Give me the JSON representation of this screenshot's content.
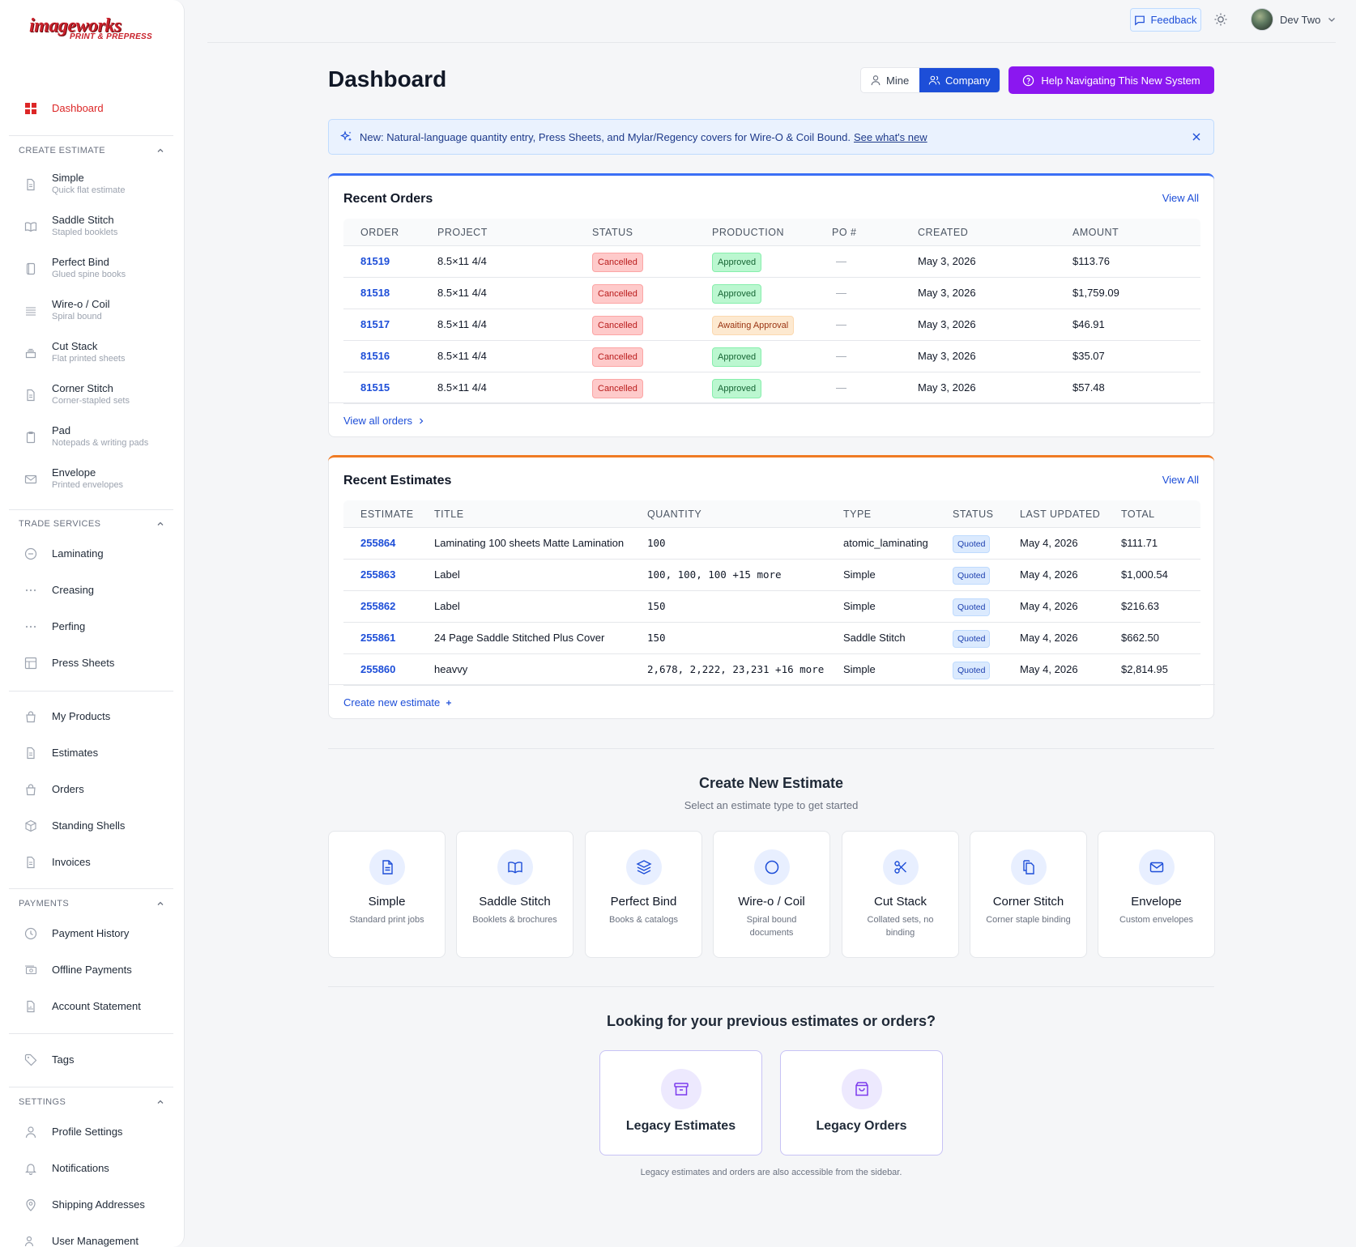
{
  "brand": {
    "line1": "imageworks",
    "line2": "PRINT & PREPRESS"
  },
  "sidebar": {
    "dashboard": "Dashboard",
    "create_estimate": {
      "label": "CREATE ESTIMATE",
      "items": [
        {
          "title": "Simple",
          "sub": "Quick flat estimate"
        },
        {
          "title": "Saddle Stitch",
          "sub": "Stapled booklets"
        },
        {
          "title": "Perfect Bind",
          "sub": "Glued spine books"
        },
        {
          "title": "Wire-o / Coil",
          "sub": "Spiral bound"
        },
        {
          "title": "Cut Stack",
          "sub": "Flat printed sheets"
        },
        {
          "title": "Corner Stitch",
          "sub": "Corner-stapled sets"
        },
        {
          "title": "Pad",
          "sub": "Notepads & writing pads"
        },
        {
          "title": "Envelope",
          "sub": "Printed envelopes"
        }
      ]
    },
    "trade_services": {
      "label": "TRADE SERVICES",
      "items": [
        "Laminating",
        "Creasing",
        "Perfing",
        "Press Sheets"
      ]
    },
    "main": [
      "My Products",
      "Estimates",
      "Orders",
      "Standing Shells",
      "Invoices"
    ],
    "payments": {
      "label": "PAYMENTS",
      "items": [
        "Payment History",
        "Offline Payments",
        "Account Statement"
      ]
    },
    "tags": "Tags",
    "settings": {
      "label": "SETTINGS",
      "items": [
        "Profile Settings",
        "Notifications",
        "Shipping Addresses",
        "User Management"
      ]
    }
  },
  "topbar": {
    "feedback": "Feedback",
    "user_name": "Dev Two"
  },
  "header": {
    "title": "Dashboard",
    "mine": "Mine",
    "company": "Company",
    "help": "Help Navigating This New System"
  },
  "banner": {
    "text": "New: Natural-language quantity entry, Press Sheets, and Mylar/Regency covers for Wire-O & Coil Bound.",
    "link": "See what's new"
  },
  "orders": {
    "title": "Recent Orders",
    "view_all": "View All",
    "columns": [
      "ORDER",
      "PROJECT",
      "STATUS",
      "PRODUCTION",
      "PO #",
      "CREATED",
      "AMOUNT"
    ],
    "rows": [
      {
        "order": "81519",
        "project": "8.5×11 4/4",
        "status": "Cancelled",
        "production": "Approved",
        "po": "—",
        "created": "May 3, 2026",
        "amount": "$113.76"
      },
      {
        "order": "81518",
        "project": "8.5×11 4/4",
        "status": "Cancelled",
        "production": "Approved",
        "po": "—",
        "created": "May 3, 2026",
        "amount": "$1,759.09"
      },
      {
        "order": "81517",
        "project": "8.5×11 4/4",
        "status": "Cancelled",
        "production": "Awaiting Approval",
        "po": "—",
        "created": "May 3, 2026",
        "amount": "$46.91"
      },
      {
        "order": "81516",
        "project": "8.5×11 4/4",
        "status": "Cancelled",
        "production": "Approved",
        "po": "—",
        "created": "May 3, 2026",
        "amount": "$35.07"
      },
      {
        "order": "81515",
        "project": "8.5×11 4/4",
        "status": "Cancelled",
        "production": "Approved",
        "po": "—",
        "created": "May 3, 2026",
        "amount": "$57.48"
      }
    ],
    "footer_link": "View all orders"
  },
  "estimates": {
    "title": "Recent Estimates",
    "view_all": "View All",
    "columns": [
      "ESTIMATE",
      "TITLE",
      "QUANTITY",
      "TYPE",
      "STATUS",
      "LAST UPDATED",
      "TOTAL"
    ],
    "rows": [
      {
        "id": "255864",
        "title": "Laminating 100 sheets Matte Lamination",
        "quantity": "100",
        "type": "atomic_laminating",
        "status": "Quoted",
        "updated": "May 4, 2026",
        "total": "$111.71"
      },
      {
        "id": "255863",
        "title": "Label",
        "quantity": "100, 100, 100 +15 more",
        "type": "Simple",
        "status": "Quoted",
        "updated": "May 4, 2026",
        "total": "$1,000.54"
      },
      {
        "id": "255862",
        "title": "Label",
        "quantity": "150",
        "type": "Simple",
        "status": "Quoted",
        "updated": "May 4, 2026",
        "total": "$216.63"
      },
      {
        "id": "255861",
        "title": "24 Page Saddle Stitched Plus Cover",
        "quantity": "150",
        "type": "Saddle Stitch",
        "status": "Quoted",
        "updated": "May 4, 2026",
        "total": "$662.50"
      },
      {
        "id": "255860",
        "title": "heavvy",
        "quantity": "2,678, 2,222, 23,231 +16 more",
        "type": "Simple",
        "status": "Quoted",
        "updated": "May 4, 2026",
        "total": "$2,814.95"
      }
    ],
    "footer_link": "Create new estimate"
  },
  "create_new": {
    "title": "Create New Estimate",
    "subtitle": "Select an estimate type to get started",
    "tiles": [
      {
        "title": "Simple",
        "desc": "Standard print jobs"
      },
      {
        "title": "Saddle Stitch",
        "desc": "Booklets & brochures"
      },
      {
        "title": "Perfect Bind",
        "desc": "Books & catalogs"
      },
      {
        "title": "Wire-o / Coil",
        "desc": "Spiral bound documents"
      },
      {
        "title": "Cut Stack",
        "desc": "Collated sets, no binding"
      },
      {
        "title": "Corner Stitch",
        "desc": "Corner staple binding"
      },
      {
        "title": "Envelope",
        "desc": "Custom envelopes"
      }
    ]
  },
  "legacy": {
    "title": "Looking for your previous estimates or orders?",
    "estimates": "Legacy Estimates",
    "orders": "Legacy Orders",
    "note": "Legacy estimates and orders are also accessible from the sidebar."
  }
}
